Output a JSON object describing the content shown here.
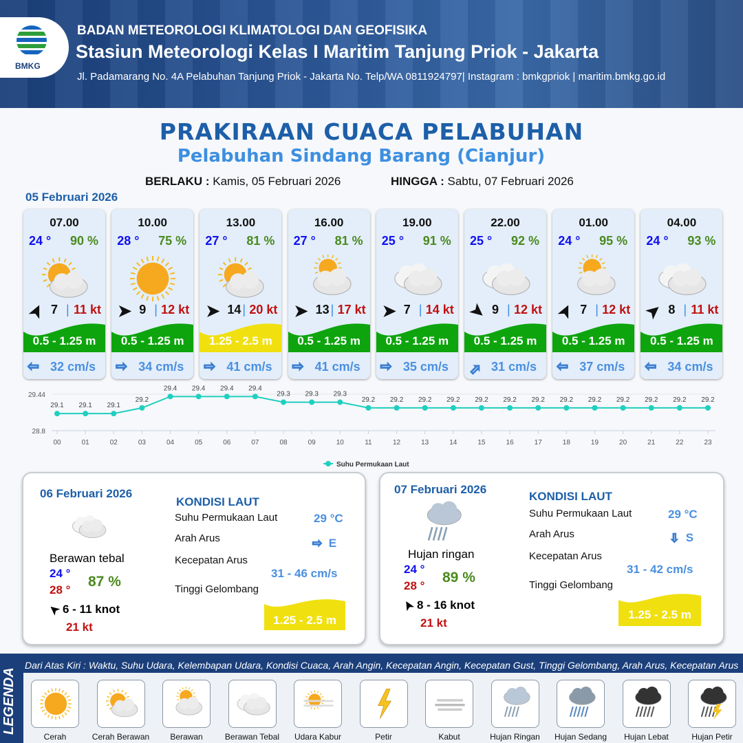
{
  "header": {
    "org": "BADAN METEOROLOGI KLIMATOLOGI DAN GEOFISIKA",
    "station": "Stasiun Meteorologi Kelas I Maritim Tanjung Priok - Jakarta",
    "address": "Jl. Padamarang No. 4A Pelabuhan Tanjung Priok - Jakarta No. Telp/WA 0811924797| Instagram : bmkgpriok | maritim.bmkg.go.id",
    "logo_text": "BMKG"
  },
  "title": "PRAKIRAAN CUACA PELABUHAN",
  "subtitle": "Pelabuhan Sindang Barang (Cianjur)",
  "validity": {
    "from_label": "BERLAKU :",
    "from": "Kamis, 05 Februari 2026",
    "to_label": "HINGGA :",
    "to": "Sabtu, 07 Februari 2026"
  },
  "day1": {
    "date": "05 Februari 2026",
    "cards": [
      {
        "time": "07.00",
        "temp": "24 °",
        "hum": "90 %",
        "icon": "cerah-berawan",
        "wind_dir_deg": -65,
        "wind": "7",
        "gust": "11 kt",
        "wave": "0.5 - 1.25 m",
        "wave_color": "#0ea40e",
        "cur_icon": "arrow-left",
        "cur": "32 cm/s"
      },
      {
        "time": "10.00",
        "temp": "28 °",
        "hum": "75 %",
        "icon": "cerah",
        "wind_dir_deg": 0,
        "wind": "9",
        "gust": "12 kt",
        "wave": "0.5 - 1.25 m",
        "wave_color": "#0ea40e",
        "cur_icon": "arrow-right",
        "cur": "34 cm/s"
      },
      {
        "time": "13.00",
        "temp": "27 °",
        "hum": "81 %",
        "icon": "cerah-berawan",
        "wind_dir_deg": 0,
        "wind": "14",
        "gust": "20 kt",
        "wave": "1.25 - 2.5 m",
        "wave_color": "#f0e010",
        "cur_icon": "arrow-right",
        "cur": "41 cm/s"
      },
      {
        "time": "16.00",
        "temp": "27 °",
        "hum": "81 %",
        "icon": "berawan",
        "wind_dir_deg": 0,
        "wind": "13",
        "gust": "17 kt",
        "wave": "0.5 - 1.25 m",
        "wave_color": "#0ea40e",
        "cur_icon": "arrow-right",
        "cur": "41 cm/s"
      },
      {
        "time": "19.00",
        "temp": "25 °",
        "hum": "91 %",
        "icon": "berawan-tebal",
        "wind_dir_deg": 0,
        "wind": "7",
        "gust": "14 kt",
        "wave": "0.5 - 1.25 m",
        "wave_color": "#0ea40e",
        "cur_icon": "arrow-right",
        "cur": "35 cm/s"
      },
      {
        "time": "22.00",
        "temp": "25 °",
        "hum": "92 %",
        "icon": "berawan-tebal",
        "wind_dir_deg": 40,
        "wind": "9",
        "gust": "12 kt",
        "wave": "0.5 - 1.25 m",
        "wave_color": "#0ea40e",
        "cur_icon": "arrow-up-right",
        "cur": "31 cm/s"
      },
      {
        "time": "01.00",
        "temp": "24 °",
        "hum": "95 %",
        "icon": "berawan",
        "wind_dir_deg": -65,
        "wind": "7",
        "gust": "12 kt",
        "wave": "0.5 - 1.25 m",
        "wave_color": "#0ea40e",
        "cur_icon": "arrow-left",
        "cur": "37 cm/s"
      },
      {
        "time": "04.00",
        "temp": "24 °",
        "hum": "93 %",
        "icon": "berawan-tebal",
        "wind_dir_deg": -40,
        "wind": "8",
        "gust": "11 kt",
        "wave": "0.5 - 1.25 m",
        "wave_color": "#0ea40e",
        "cur_icon": "arrow-left",
        "cur": "34 cm/s"
      }
    ]
  },
  "chart_data": {
    "type": "line",
    "x": [
      "00",
      "01",
      "02",
      "03",
      "04",
      "05",
      "06",
      "07",
      "08",
      "09",
      "10",
      "11",
      "12",
      "13",
      "14",
      "15",
      "16",
      "17",
      "18",
      "19",
      "20",
      "21",
      "22",
      "23"
    ],
    "series": [
      {
        "name": "Suhu Permukaan Laut",
        "values": [
          29.1,
          29.1,
          29.1,
          29.2,
          29.4,
          29.4,
          29.4,
          29.4,
          29.3,
          29.3,
          29.3,
          29.2,
          29.2,
          29.2,
          29.2,
          29.2,
          29.2,
          29.2,
          29.2,
          29.2,
          29.2,
          29.2,
          29.2,
          29.2
        ],
        "color": "#1fcfbf"
      }
    ],
    "ylim": [
      28.8,
      29.44
    ],
    "yticks": [
      "29.44",
      "28.8"
    ],
    "legend": "bottom"
  },
  "day2": {
    "date": "06 Februari 2026",
    "icon": "berawan-tebal",
    "cond": "Berawan tebal",
    "tmin": "24 °",
    "tmax": "28 °",
    "hum": "87 %",
    "wind": "6  - 11 knot",
    "gust": "21 kt",
    "kondisi": "KONDISI LAUT",
    "sst_label": "Suhu Permukaan Laut",
    "sst": "29 °C",
    "dir_label": "Arah Arus",
    "dir": "E",
    "speed_label": "Kecepatan Arus",
    "speed": "31  - 46 cm/s",
    "wave_label": "Tinggi Gelombang",
    "wave": "1.25 - 2.5 m"
  },
  "day3": {
    "date": "07 Februari 2026",
    "icon": "hujan-ringan",
    "cond": "Hujan ringan",
    "tmin": "24 °",
    "tmax": "28 °",
    "hum": "89 %",
    "wind": "8  - 16 knot",
    "gust": "21 kt",
    "kondisi": "KONDISI LAUT",
    "sst_label": "Suhu Permukaan Laut",
    "sst": "29 °C",
    "dir_label": "Arah Arus",
    "dir": "S",
    "speed_label": "Kecepatan Arus",
    "speed": "31  - 42 cm/s",
    "wave_label": "Tinggi Gelombang",
    "wave": "1.25 - 2.5 m"
  },
  "legend": {
    "title": "LEGENDA",
    "description": "Dari Atas Kiri : Waktu, Suhu Udara, Kelembapan Udara, Kondisi Cuaca, Arah Angin, Kecepatan Angin, Kecepatan Gust, Tinggi Gelombang, Arah Arus, Kecepatan Arus",
    "items": [
      "Cerah",
      "Cerah Berawan",
      "Berawan",
      "Berawan Tebal",
      "Udara Kabur",
      "Petir",
      "Kabut",
      "Hujan Ringan",
      "Hujan Sedang",
      "Hujan Lebat",
      "Hujan Petir"
    ]
  }
}
